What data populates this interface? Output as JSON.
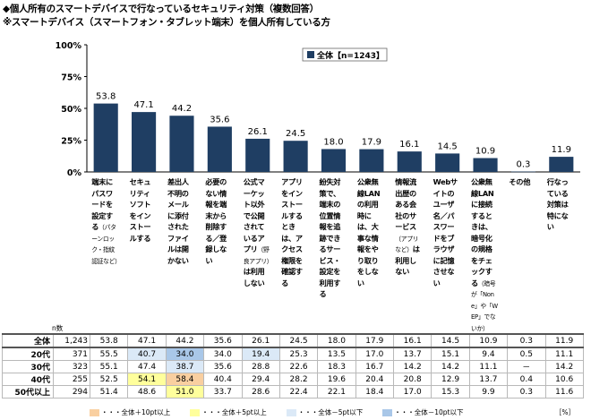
{
  "title_line1": "◆個人所有のスマートデバイスで行なっているセキュリティ対策（複数回答）",
  "title_line2": "※スマートデバイス（スマートフォン・タブレット端末）を個人所有している方",
  "chart_data": {
    "type": "bar",
    "ylim": [
      0,
      100
    ],
    "yticks": [
      "0%",
      "25%",
      "50%",
      "75%",
      "100%"
    ],
    "ytick_values": [
      0,
      25,
      50,
      75,
      100
    ],
    "series": [
      {
        "name": "全体【n=1243】",
        "values": [
          53.8,
          47.1,
          44.2,
          35.6,
          26.1,
          24.5,
          18.0,
          17.9,
          16.1,
          14.5,
          10.9,
          0.3,
          11.9
        ]
      }
    ],
    "value_labels": [
      "53.8",
      "47.1",
      "44.2",
      "35.6",
      "26.1",
      "24.5",
      "18.0",
      "17.9",
      "16.1",
      "14.5",
      "10.9",
      "0.3",
      "11.9"
    ],
    "categories": [
      {
        "main": "端末にパスワードを設定する",
        "sub": "（パターンロック・指紋認証など）"
      },
      {
        "main": "セキュリティソフトをインストールする",
        "sub": ""
      },
      {
        "main": "差出人不明のメールに添付されたファイルは開かない",
        "sub": ""
      },
      {
        "main": "必要のない情報を端末から削除する／登録しない",
        "sub": ""
      },
      {
        "main": "公式マーケット以外で公開されているアプリ",
        "sub": "（野良アプリ）",
        "main2": "は利用しない"
      },
      {
        "main": "アプリをインストールするときは、アクセス権限を確認する",
        "sub": ""
      },
      {
        "main": "紛失対策で、端末の位置情報を追跡できるサービス・設定を利用する",
        "sub": ""
      },
      {
        "main": "公衆無線LANの利用時には、大事な情報をやり取りをしない",
        "sub": ""
      },
      {
        "main": "情報流出歴のある会社のサービス",
        "sub": "（アプリなど）",
        "main2": "は利用しない"
      },
      {
        "main": "Webサイトのユーザ名／パスワードをブラウザに記憶させない",
        "sub": ""
      },
      {
        "main": "公衆無線LANに接続するときは、暗号化の規格をチェックする",
        "sub": "（暗号が「None」や「WEP」でないか）"
      },
      {
        "main": "その他",
        "sub": ""
      },
      {
        "main": "行なっている対策は特にない",
        "sub": ""
      }
    ],
    "table": {
      "n_header": "n数",
      "rows": [
        {
          "label": "全体",
          "n": "1,243",
          "values": [
            "53.8",
            "47.1",
            "44.2",
            "35.6",
            "26.1",
            "24.5",
            "18.0",
            "17.9",
            "16.1",
            "14.5",
            "10.9",
            "0.3",
            "11.9"
          ],
          "hl": [
            "",
            "",
            "",
            "",
            "",
            "",
            "",
            "",
            "",
            "",
            "",
            "",
            ""
          ]
        },
        {
          "label": "20代",
          "n": "371",
          "values": [
            "55.5",
            "40.7",
            "34.0",
            "34.0",
            "19.4",
            "25.3",
            "13.5",
            "17.0",
            "13.7",
            "15.1",
            "9.4",
            "0.5",
            "11.1"
          ],
          "hl": [
            "",
            "lb",
            "db",
            "",
            "lb",
            "",
            "",
            "",
            "",
            "",
            "",
            "",
            ""
          ]
        },
        {
          "label": "30代",
          "n": "323",
          "values": [
            "55.1",
            "47.4",
            "38.7",
            "35.6",
            "28.8",
            "22.6",
            "18.3",
            "16.7",
            "14.2",
            "14.2",
            "11.1",
            "－",
            "14.2"
          ],
          "hl": [
            "",
            "",
            "lb",
            "",
            "",
            "",
            "",
            "",
            "",
            "",
            "",
            "",
            ""
          ]
        },
        {
          "label": "40代",
          "n": "255",
          "values": [
            "52.5",
            "54.1",
            "58.4",
            "40.4",
            "29.4",
            "28.2",
            "19.6",
            "20.4",
            "20.8",
            "12.9",
            "13.7",
            "0.4",
            "10.6"
          ],
          "hl": [
            "",
            "ly",
            "or",
            "",
            "",
            "",
            "",
            "",
            "",
            "",
            "",
            "",
            ""
          ]
        },
        {
          "label": "50代以上",
          "n": "294",
          "values": [
            "51.4",
            "48.6",
            "51.0",
            "33.7",
            "28.6",
            "22.4",
            "22.1",
            "18.4",
            "17.0",
            "15.3",
            "9.9",
            "0.3",
            "11.6"
          ],
          "hl": [
            "",
            "",
            "ly",
            "",
            "",
            "",
            "",
            "",
            "",
            "",
            "",
            "",
            ""
          ]
        }
      ]
    },
    "highlight_legend": [
      {
        "label": "・・・全体＋10pt以上",
        "color": "#f9cfa0"
      },
      {
        "label": "・・・全体＋5pt以上",
        "color": "#ffff9c"
      },
      {
        "label": "・・・全体－5pt以下",
        "color": "#dbe9f7"
      },
      {
        "label": "・・・全体－10pt以下",
        "color": "#a9c7e8"
      }
    ],
    "unit_note": "［%］"
  },
  "colors": {
    "bar": "#1f3e63",
    "lb": "#dbe9f7",
    "db": "#a9c7e8",
    "ly": "#ffff9c",
    "or": "#f9cfa0"
  }
}
